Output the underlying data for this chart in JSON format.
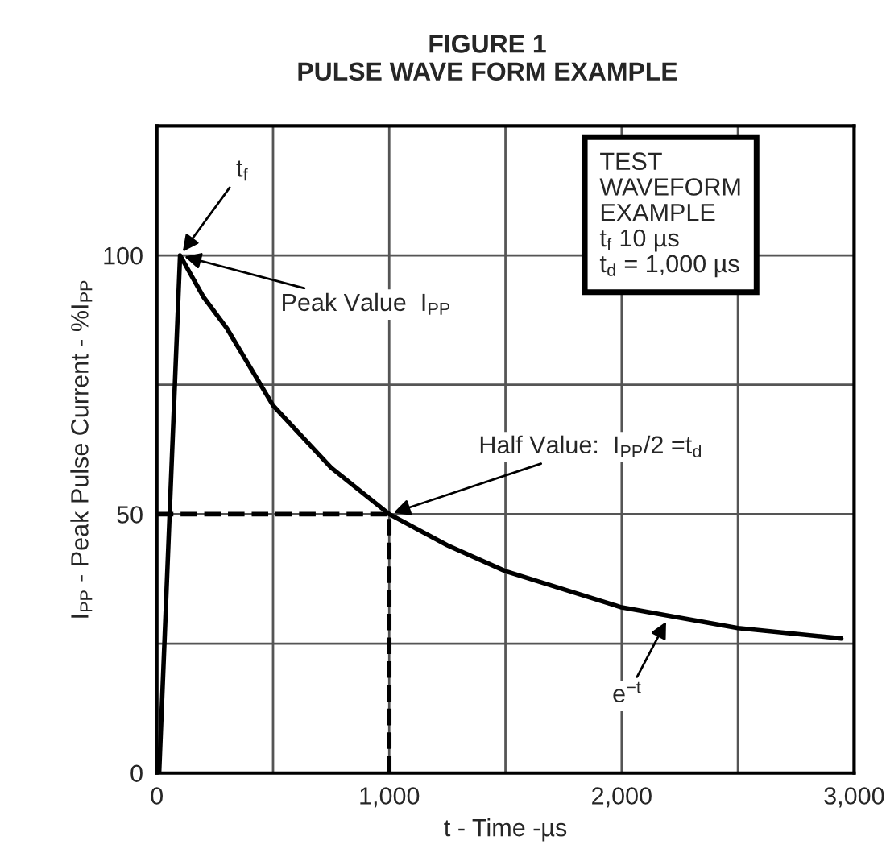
{
  "chart_data": {
    "type": "line",
    "title": "FIGURE 1\nPULSE WAVE FORM EXAMPLE",
    "xlabel": "t - Time -µs",
    "ylabel": "I$_{PP}$ - Peak Pulse Current - %I$_{PP}$",
    "xlim": [
      0,
      3000
    ],
    "ylim": [
      0,
      125
    ],
    "xticks": [
      0,
      {
        "value": 500,
        "label": null
      },
      {
        "value": 1000,
        "label": "1,000"
      },
      {
        "value": 1500,
        "label": null
      },
      {
        "value": 2000,
        "label": "2,000"
      },
      {
        "value": 2500,
        "label": null
      },
      {
        "value": 3000,
        "label": "3,000"
      }
    ],
    "yticks": [
      0,
      {
        "value": 25,
        "label": null
      },
      50,
      {
        "value": 75,
        "label": null
      },
      100
    ],
    "grid": true,
    "series": [
      {
        "color": "#000000",
        "line_style": "solid",
        "x": [
          10,
          100,
          200,
          300,
          500,
          750,
          1000,
          1250,
          1500,
          2000,
          2500,
          2945
        ],
        "values": [
          0,
          100,
          92,
          86,
          71,
          59,
          50,
          44,
          39,
          32,
          28,
          26
        ]
      },
      {
        "color": "#000000",
        "line_style": "dashed",
        "x": [
          0,
          1000,
          1000
        ],
        "values": [
          50,
          50,
          0
        ]
      }
    ],
    "annotations": [
      {
        "text": "t$_{f}$",
        "x": 100,
        "y": 100
      },
      {
        "text": "Peak Value  I$_{PP}$",
        "x": 100,
        "y": 100
      },
      {
        "text": "Half Value:  I$_{PP}$/2 =t$_{d}$",
        "x": 1000,
        "y": 50
      },
      {
        "text": "e$^{−t}$",
        "x": 2200,
        "y": 30
      },
      "TEST\nWAVEFORM\nEXAMPLE\nt$_{f}$ 10 µs\nt$_{d}$ = 1,000 µs"
    ]
  }
}
